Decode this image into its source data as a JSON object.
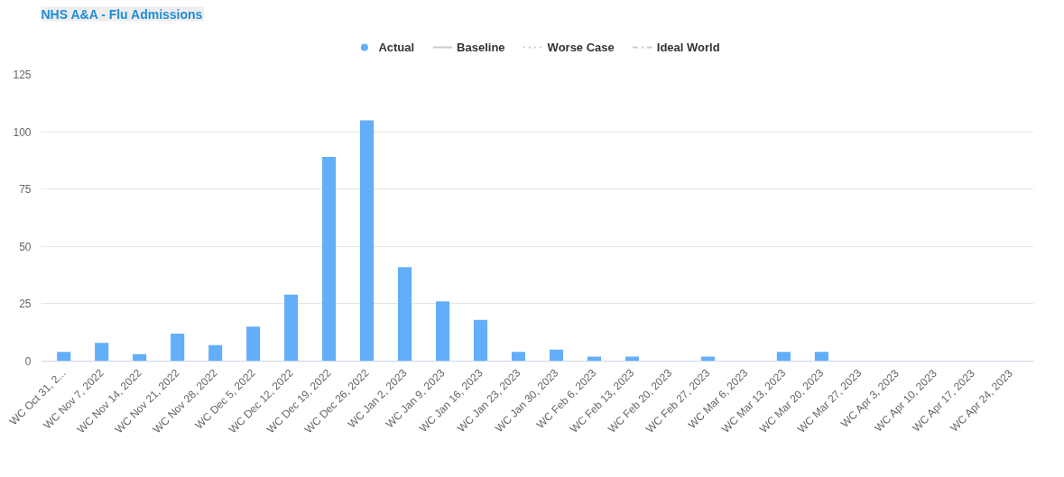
{
  "chart_data": {
    "type": "bar",
    "title": "NHS A&A - Flu Admissions",
    "categories": [
      "WC Oct 31, 2...",
      "WC Nov 7, 2022",
      "WC Nov 14, 2022",
      "WC Nov 21, 2022",
      "WC Nov 28, 2022",
      "WC Dec 5, 2022",
      "WC Dec 12, 2022",
      "WC Dec 19, 2022",
      "WC Dec 26, 2022",
      "WC Jan 2, 2023",
      "WC Jan 9, 2023",
      "WC Jan 16, 2023",
      "WC Jan 23, 2023",
      "WC Jan 30, 2023",
      "WC Feb 6, 2023",
      "WC Feb 13, 2023",
      "WC Feb 20, 2023",
      "WC Feb 27, 2023",
      "WC Mar 6, 2023",
      "WC Mar 13, 2023",
      "WC Mar 20, 2023",
      "WC Mar 27, 2023",
      "WC Apr 3, 2023",
      "WC Apr 10, 2023",
      "WC Apr 17, 2023",
      "WC Apr 24, 2023"
    ],
    "series": [
      {
        "name": "Actual",
        "color": "#62aef9",
        "values": [
          4,
          8,
          3,
          12,
          7,
          15,
          29,
          89,
          105,
          41,
          26,
          18,
          4,
          5,
          2,
          2,
          0,
          2,
          0,
          4,
          4,
          0,
          0,
          0,
          0,
          0
        ]
      },
      {
        "name": "Baseline",
        "type": "line",
        "line_style": "solid",
        "color": "#cccccc",
        "values": [
          null,
          null,
          null,
          null,
          null,
          null,
          null,
          null,
          null,
          null,
          null,
          null,
          null,
          null,
          null,
          null,
          null,
          null,
          null,
          null,
          null,
          null,
          null,
          null,
          null,
          null
        ]
      },
      {
        "name": "Worse Case",
        "type": "line",
        "line_style": "dotted",
        "color": "#cccccc",
        "values": [
          null,
          null,
          null,
          null,
          null,
          null,
          null,
          null,
          null,
          null,
          null,
          null,
          null,
          null,
          null,
          null,
          null,
          null,
          null,
          null,
          null,
          null,
          null,
          null,
          null,
          null
        ]
      },
      {
        "name": "Ideal World",
        "type": "line",
        "line_style": "dashdot",
        "color": "#cccccc",
        "values": [
          null,
          null,
          null,
          null,
          null,
          null,
          null,
          null,
          null,
          null,
          null,
          null,
          null,
          null,
          null,
          null,
          null,
          null,
          null,
          null,
          null,
          null,
          null,
          null,
          null,
          null
        ]
      }
    ],
    "ylim": [
      0,
      125
    ],
    "yticks": [
      0,
      25,
      50,
      75,
      100,
      125
    ],
    "grid": "y",
    "legend": "top"
  }
}
